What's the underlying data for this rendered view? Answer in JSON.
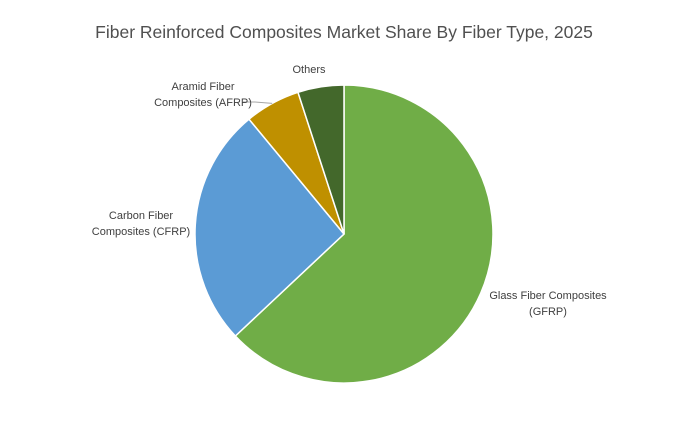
{
  "chart_data": {
    "type": "pie",
    "title": "Fiber Reinforced Composites Market Share By Fiber Type, 2025",
    "slices": [
      {
        "label_lines": [
          "Glass Fiber Composites",
          "(GFRP)"
        ],
        "value": 63,
        "color": "#70ad47"
      },
      {
        "label_lines": [
          "Carbon Fiber",
          "Composites (CFRP)"
        ],
        "value": 26,
        "color": "#5b9bd5"
      },
      {
        "label_lines": [
          "Aramid Fiber",
          "Composites (AFRP)"
        ],
        "value": 6,
        "color": "#bf9000"
      },
      {
        "label_lines": [
          "Others"
        ],
        "value": 5,
        "color": "#43682b"
      }
    ],
    "start_angle": "12 o'clock",
    "direction": "clockwise",
    "legend": "none",
    "data_labels": "category names outside slices"
  }
}
